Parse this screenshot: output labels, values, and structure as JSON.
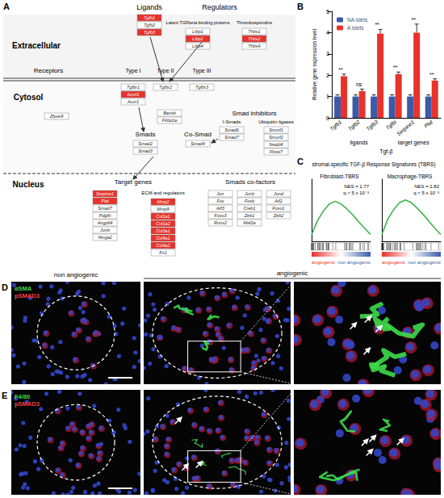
{
  "chart_data": [
    {
      "type": "bar",
      "ylabel": "Relative gene expression level",
      "xlabel": "Tgf-β",
      "categories": [
        "Tgfb1",
        "Tgfb2",
        "Tgfb3",
        "Tgfbi",
        "Serpine1",
        "Plat"
      ],
      "category_groups": [
        {
          "label": "ligands",
          "from": 0,
          "to": 2
        },
        {
          "label": "target genes",
          "from": 3,
          "to": 5
        }
      ],
      "series": [
        {
          "name": "NA islets",
          "color": "#3b5ba9",
          "values": [
            1,
            1,
            1,
            1,
            1,
            1
          ],
          "errors": [
            0.08,
            0.08,
            0.08,
            0.08,
            0.08,
            0.08
          ]
        },
        {
          "name": "A islets",
          "color": "#e8322b",
          "values": [
            1.95,
            1.25,
            3.95,
            2.05,
            4.0,
            1.75
          ],
          "errors": [
            0.1,
            0.1,
            0.2,
            0.1,
            0.4,
            0.08
          ]
        }
      ],
      "annotations": [
        "**",
        "ns",
        "**",
        "**",
        "**",
        "**"
      ],
      "ylim": [
        0,
        5
      ],
      "yticks": [
        0,
        1,
        2,
        3,
        4,
        5
      ],
      "legend": "top-left",
      "grid": false
    },
    {
      "type": "line",
      "title": "Fibroblast-TBRS",
      "x": [
        0,
        10,
        20,
        30,
        40,
        50,
        60,
        70,
        80,
        90,
        100
      ],
      "values": [
        0,
        0.2,
        0.34,
        0.44,
        0.48,
        0.44,
        0.37,
        0.28,
        0.18,
        0.09,
        0
      ],
      "color": "#3cb44b",
      "annotations": [
        "NES = 1.77",
        "q < 5 x 10⁻³"
      ],
      "xlim": [
        0,
        100
      ],
      "ylim": [
        -0.1,
        0.8
      ],
      "tick_labels": false
    },
    {
      "type": "line",
      "title": "Macrophage-TBRS",
      "x": [
        0,
        10,
        20,
        30,
        40,
        50,
        60,
        70,
        80,
        90,
        100
      ],
      "values": [
        0,
        0.22,
        0.36,
        0.46,
        0.5,
        0.46,
        0.38,
        0.29,
        0.19,
        0.09,
        0
      ],
      "color": "#3cb44b",
      "annotations": [
        "NES = 1.82",
        "q < 5 x 10⁻³"
      ],
      "xlim": [
        0,
        100
      ],
      "ylim": [
        -0.1,
        0.8
      ],
      "tick_labels": false
    }
  ],
  "figure": {
    "panel_labels": [
      "A",
      "B",
      "C",
      "D",
      "E"
    ],
    "A": {
      "compartments": [
        "Extracellular",
        "Cytosol",
        "Nucleus"
      ],
      "labels": [
        "Regulators",
        "Receptors",
        "Smad inhibitors"
      ],
      "groups": [
        {
          "title": "Ligands",
          "genes": [
            "Tgfb1",
            "Tgfb2",
            "Tgfb3"
          ],
          "highlighted": [
            "Tgfb1",
            "Tgfb3"
          ]
        },
        {
          "title": "Latent TGFbeta binding proteins",
          "genes": [
            "Ltbp1",
            "Ltbp2",
            "Ltbp4"
          ],
          "highlighted": [
            "Ltbp2"
          ]
        },
        {
          "title": "Thrombospondins",
          "genes": [
            "Thbs1",
            "Thbs2",
            "Thbs4"
          ],
          "highlighted": [
            "Thbs2"
          ]
        },
        {
          "title": "Type I",
          "genes": [
            "Tgfbr1",
            "Acvrl1",
            "Acvr1"
          ],
          "highlighted": [
            "Acvrl1"
          ]
        },
        {
          "title": "Type II",
          "genes": [
            "Tgfbr2"
          ],
          "highlighted": []
        },
        {
          "title": "Type III",
          "genes": [
            "Tgfbr3"
          ],
          "highlighted": []
        },
        {
          "title": "Smads",
          "genes": [
            "Smad2",
            "Smad3"
          ],
          "highlighted": []
        },
        {
          "title": "Co-Smad",
          "genes": [
            "Smad4"
          ],
          "highlighted": []
        },
        {
          "title": "I-Smads",
          "genes": [
            "Smad6",
            "Smad7"
          ],
          "highlighted": []
        },
        {
          "title": "Ubiquitin ligases",
          "genes": [
            "Smurf1",
            "Smurf2",
            "Nedd4l",
            "Fbxw7"
          ],
          "highlighted": []
        },
        {
          "title": "Target genes",
          "genes": [
            "Serpine1",
            "Plat",
            "Smad7",
            "Pdgfb",
            "Angptl4",
            "Junb",
            "Hmga2"
          ],
          "highlighted": [
            "Serpine1",
            "Plat"
          ]
        },
        {
          "title": "ECM and regulators",
          "genes": [
            "Mmp2",
            "Mmp9",
            "Col1a1",
            "Col1a2",
            "Col3a1",
            "Col4a1",
            "Col4a2",
            "Fn1"
          ],
          "highlighted": [
            "Mmp2",
            "Col1a1",
            "Col1a2",
            "Col3a1",
            "Col4a1",
            "Col4a2"
          ]
        },
        {
          "title": "Smads co-factors",
          "genes": [
            "Jun",
            "Junb",
            "Jund",
            "Fos",
            "Fosb",
            "Atf2",
            "Atf3",
            "Creb1",
            "Foxo1",
            "Foxo3",
            "Zeb1",
            "Zeb2",
            "Runx2",
            "Mef2a"
          ],
          "highlighted": []
        }
      ],
      "other_genes": [
        "Zfyve9",
        "Bambi",
        "Fkbp1a"
      ]
    },
    "C": {
      "title": "stromal-specific TGF-β Response Signatures (TBRS)",
      "phenotypes": [
        "angiogenic",
        "non angiogenic"
      ]
    },
    "image_columns": [
      "non angiogenic",
      "angiogenic"
    ],
    "D": {
      "stains": [
        {
          "text": "αSMA",
          "color": "#3ddc4a"
        },
        {
          "text": "pSMAD3",
          "color": "#ff3a3a"
        }
      ]
    },
    "E": {
      "stains": [
        {
          "text": "F4/80",
          "color": "#3ddc4a"
        },
        {
          "text": "pSMAD3",
          "color": "#ff3a3a"
        }
      ]
    }
  }
}
